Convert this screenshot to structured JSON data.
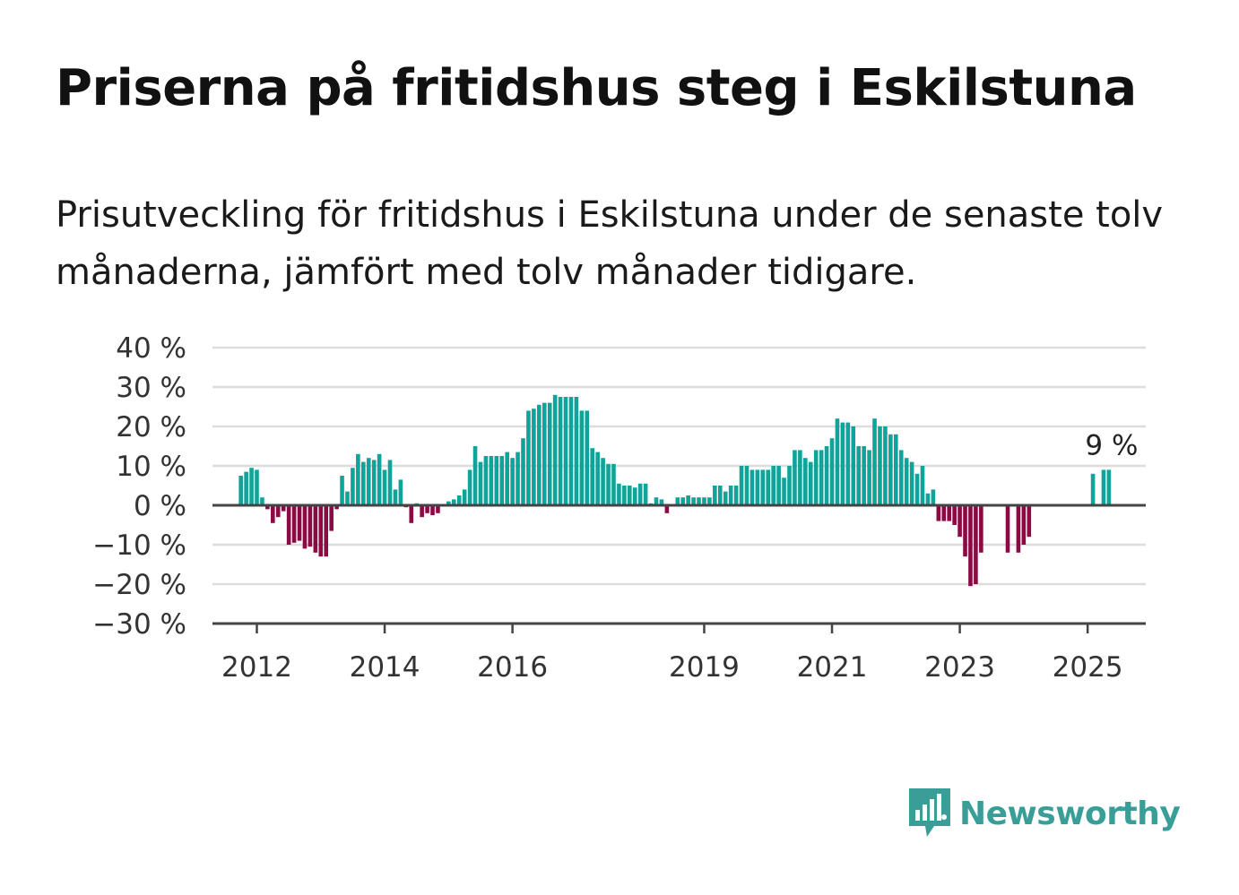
{
  "title": "Priserna på fritidshus steg i Eskilstuna",
  "subtitle": "Prisutveckling för fritidshus i Eskilstuna under de senaste tolv månaderna, jämfört med tolv månader tidigare.",
  "brand": {
    "name": "Newsworthy"
  },
  "colors": {
    "positive": "#0fa39a",
    "negative": "#8c0a44",
    "grid": "#dcdcdc",
    "axis": "#444444"
  },
  "chart_data": {
    "type": "bar",
    "unit": "%",
    "ylim": [
      -30,
      40
    ],
    "yticks": [
      40,
      30,
      20,
      10,
      0,
      -10,
      -20,
      -30
    ],
    "ytick_labels": [
      "40 %",
      "30 %",
      "20 %",
      "10 %",
      "0 %",
      "−10 %",
      "−20 %",
      "−30 %"
    ],
    "xtick_labels": [
      "2012",
      "2014",
      "2016",
      "2019",
      "2021",
      "2023",
      "2025"
    ],
    "xtick_years": [
      2012,
      2014,
      2016,
      2019,
      2021,
      2023,
      2025
    ],
    "x_start": "2011-10",
    "annotation": "9 %",
    "values": [
      7.5,
      8.5,
      9.5,
      9,
      2,
      -1,
      -4.5,
      -3,
      -1.5,
      -10,
      -9.5,
      -9,
      -11,
      -10.5,
      -12,
      -13,
      -13,
      -6.5,
      -1,
      7.5,
      3.5,
      9.5,
      13,
      11,
      12,
      11.5,
      13,
      9,
      11.5,
      4,
      6.5,
      -0.5,
      -4.5,
      0.5,
      -3,
      -2,
      -2.5,
      -2,
      0,
      1,
      1.5,
      2.5,
      4,
      9,
      15,
      11,
      12.5,
      12.5,
      12.5,
      12.5,
      13.5,
      12,
      13.5,
      17,
      24,
      24.5,
      25.5,
      26,
      26,
      28,
      27.5,
      27.5,
      27.5,
      27.5,
      24,
      24,
      14.5,
      13.5,
      12,
      10.5,
      10.5,
      5.5,
      5,
      5,
      4.5,
      5.5,
      5.5,
      0.5,
      2,
      1.5,
      -2,
      0,
      2,
      2,
      2.5,
      2,
      2,
      2,
      2,
      5,
      5,
      3.5,
      5,
      5,
      10,
      10,
      9,
      9,
      9,
      9,
      10,
      10,
      7,
      10,
      14,
      14,
      12,
      11,
      14,
      14,
      15,
      17,
      22,
      21,
      21,
      20,
      15,
      15,
      14,
      22,
      20,
      20,
      18,
      18,
      14,
      12,
      11,
      8,
      10,
      3,
      4,
      -4,
      -4,
      -4,
      -5,
      -8,
      -13,
      -20.5,
      -20,
      -12,
      null,
      null,
      null,
      null,
      -12,
      null,
      -12,
      -10,
      -8,
      null,
      null,
      null,
      null,
      null,
      null,
      null,
      null,
      null,
      null,
      null,
      8,
      null,
      9,
      9
    ]
  }
}
